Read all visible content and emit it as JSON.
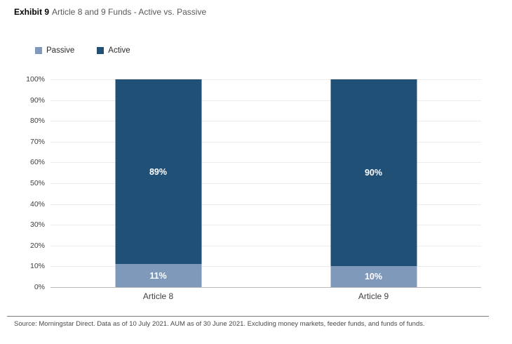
{
  "title": {
    "exhibit": "Exhibit 9",
    "text": "Article 8 and 9 Funds - Active vs. Passive"
  },
  "chart_data": {
    "type": "bar",
    "stacked": true,
    "title": "Exhibit 9 Article 8 and 9 Funds - Active vs. Passive",
    "categories": [
      "Article 8",
      "Article 9"
    ],
    "series": [
      {
        "name": "Passive",
        "color": "#7f99bb",
        "values": [
          11,
          10
        ]
      },
      {
        "name": "Active",
        "color": "#205076",
        "values": [
          89,
          90
        ]
      }
    ],
    "value_labels": [
      "11%",
      "89%",
      "10%",
      "90%"
    ],
    "value_label_color": "#ffffff",
    "y_ticks": [
      "100%",
      "90%",
      "80%",
      "70%",
      "60%",
      "50%",
      "40%",
      "30%",
      "20%",
      "10%",
      "0%"
    ],
    "ylim": [
      0,
      100
    ],
    "xlabel": "",
    "ylabel": "",
    "grid": true,
    "gridline_color": "#ececec",
    "baseline_color": "#b9b9b9",
    "legend_position": "top-left"
  },
  "source": "Source: Morningstar Direct. Data as of 10 July 2021. AUM as of 30 June 2021. Excluding money markets, feeder funds, and funds of funds."
}
